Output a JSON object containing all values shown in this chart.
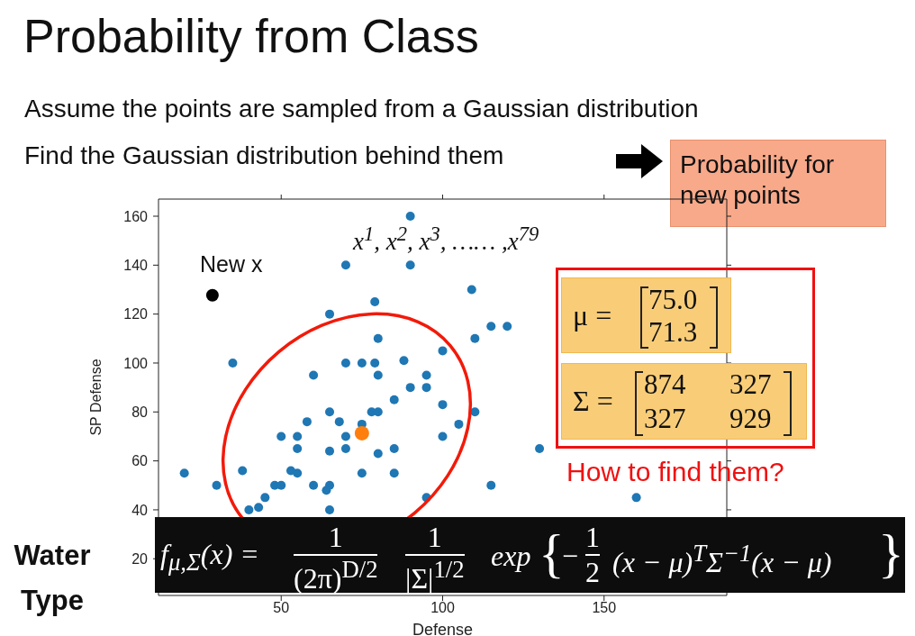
{
  "chart_data": {
    "type": "scatter",
    "title": "Probability from Class",
    "xlabel": "Defense",
    "ylabel": "SP Defense",
    "xlim": [
      12,
      188
    ],
    "xticks": [
      50,
      100,
      150
    ],
    "ylim": [
      5,
      167
    ],
    "yticks": [
      20,
      40,
      60,
      80,
      100,
      120,
      140,
      160
    ],
    "grid": false,
    "legend": false,
    "marker": "circle",
    "series": [
      {
        "color": "#1f77b4",
        "x": [
          90,
          70,
          90,
          79,
          65,
          80,
          35,
          70,
          75,
          79,
          88,
          60,
          80,
          95,
          90,
          95,
          85,
          100,
          100,
          65,
          78,
          80,
          58,
          68,
          75,
          105,
          100,
          50,
          55,
          70,
          55,
          65,
          70,
          80,
          85,
          20,
          38,
          53,
          55,
          75,
          85,
          30,
          48,
          50,
          60,
          65,
          64,
          45,
          40,
          43,
          65,
          95,
          109,
          115,
          120,
          110,
          110,
          130,
          115,
          160
        ],
        "values": [
          160,
          140,
          140,
          125,
          120,
          110,
          100,
          100,
          100,
          100,
          101,
          95,
          95,
          95,
          90,
          90,
          85,
          105,
          83,
          80,
          80,
          80,
          76,
          76,
          75,
          75,
          70,
          70,
          70,
          70,
          65,
          64,
          65,
          63,
          65,
          55,
          56,
          56,
          55,
          55,
          55,
          50,
          50,
          50,
          50,
          50,
          48,
          45,
          40,
          41,
          40,
          45,
          130,
          115,
          115,
          110,
          80,
          65,
          50,
          45
        ]
      },
      {
        "color": "#ff7f0e",
        "x": [
          75.0
        ],
        "values": [
          71.3
        ]
      },
      {
        "color": "#000000",
        "x": [
          28.7
        ],
        "values": [
          127.7
        ]
      }
    ],
    "annotations": [
      "Assume the points are sampled from a Gaussian distribution",
      "Find the Gaussian distribution behind them",
      "Probability for new points",
      "x$^{1}$, x$^{2}$, x$^{3}$, …… ,x$^{79}$",
      "New x",
      "μ =",
      "75.0",
      "71.3",
      "Σ =",
      "874",
      "327",
      "327",
      "929",
      "How to find them?",
      "Water Type",
      "f$_{μ,Σ}$(x) =",
      "1",
      "(2π)$^{D/2}$",
      "1",
      "|Σ|$^{1/2}$",
      "exp",
      "{",
      "−",
      "1",
      "2",
      "(x − μ)$^{T}$Σ$^{−1}$(x − μ)",
      "}"
    ]
  }
}
